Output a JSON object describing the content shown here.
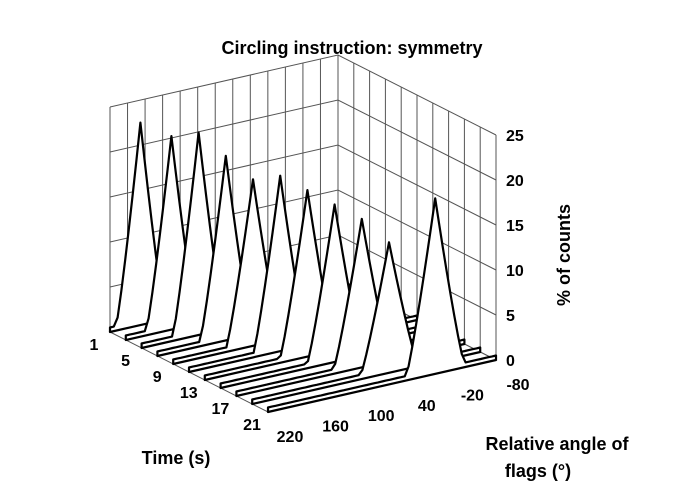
{
  "chart_data": {
    "type": "area",
    "subtype": "3d-surface-ribbons",
    "title": "Circling instruction: symmetry",
    "xlabel": "Relative angle of flags (°)",
    "ylabel": "Time (s)",
    "zlabel": "% of counts",
    "angle_tick_labels": [
      "220",
      "160",
      "100",
      "40",
      "-20",
      "-80"
    ],
    "time_tick_labels": [
      "1",
      "5",
      "9",
      "13",
      "17",
      "21"
    ],
    "z_tick_labels": [
      "0",
      "5",
      "10",
      "15",
      "20",
      "25"
    ],
    "zlim": [
      0,
      25
    ],
    "angle_range": [
      220,
      -80
    ],
    "time_range": [
      1,
      21
    ],
    "grid": true,
    "series": [
      {
        "time": 1,
        "peak_angle": 180,
        "peak": 22,
        "width": 32
      },
      {
        "time": 3,
        "peak_angle": 160,
        "peak": 21,
        "width": 33
      },
      {
        "time": 5,
        "peak_angle": 145,
        "peak": 22,
        "width": 34
      },
      {
        "time": 7,
        "peak_angle": 130,
        "peak": 20,
        "width": 34
      },
      {
        "time": 9,
        "peak_angle": 115,
        "peak": 18,
        "width": 35
      },
      {
        "time": 11,
        "peak_angle": 100,
        "peak": 19,
        "width": 35
      },
      {
        "time": 13,
        "peak_angle": 85,
        "peak": 18,
        "width": 36
      },
      {
        "time": 15,
        "peak_angle": 70,
        "peak": 17,
        "width": 36
      },
      {
        "time": 17,
        "peak_angle": 55,
        "peak": 16,
        "width": 37
      },
      {
        "time": 19,
        "peak_angle": 40,
        "peak": 14,
        "width": 37
      },
      {
        "time": 21,
        "peak_angle": 0,
        "peak": 19,
        "width": 38
      }
    ]
  }
}
